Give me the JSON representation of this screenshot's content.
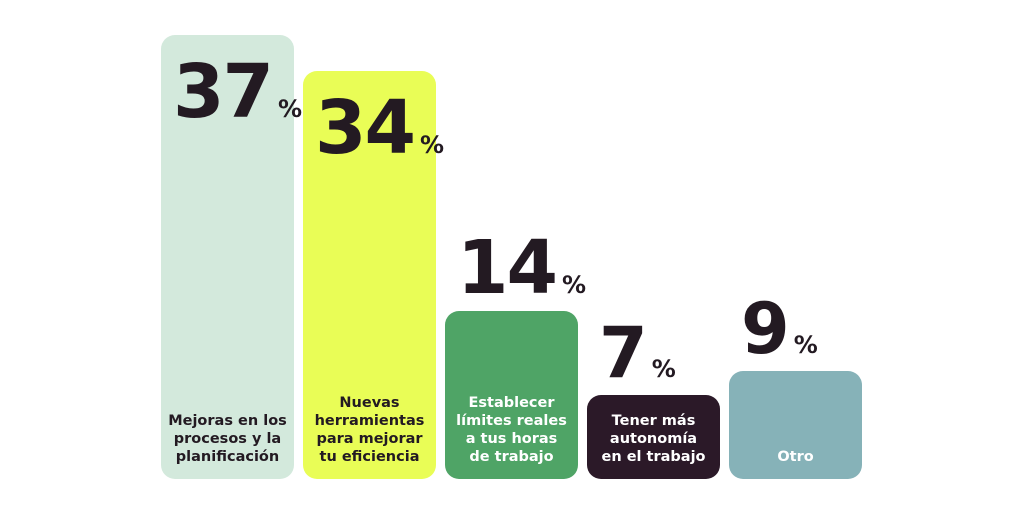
{
  "chart_data": {
    "type": "bar",
    "categories": [
      [
        "Mejoras en los",
        "procesos y la",
        "planificación"
      ],
      [
        "Nuevas",
        "herramientas",
        "para mejorar",
        "tu eficiencia"
      ],
      [
        "Establecer",
        "límites reales",
        "a tus horas",
        "de trabajo"
      ],
      [
        "Tener más",
        "autonomía",
        "en el trabajo"
      ],
      [
        "Otro"
      ]
    ],
    "values": [
      37,
      34,
      14,
      7,
      9
    ],
    "unit": "%",
    "ylim": [
      0,
      37
    ],
    "grid": false,
    "legend": "none",
    "colors": [
      "#d3e9dc",
      "#e9fd56",
      "#4fa466",
      "#2b1928",
      "#86b2b8"
    ],
    "label_colors": [
      "#231a22",
      "#231a22",
      "#ffffff",
      "#ffffff",
      "#ffffff"
    ]
  }
}
